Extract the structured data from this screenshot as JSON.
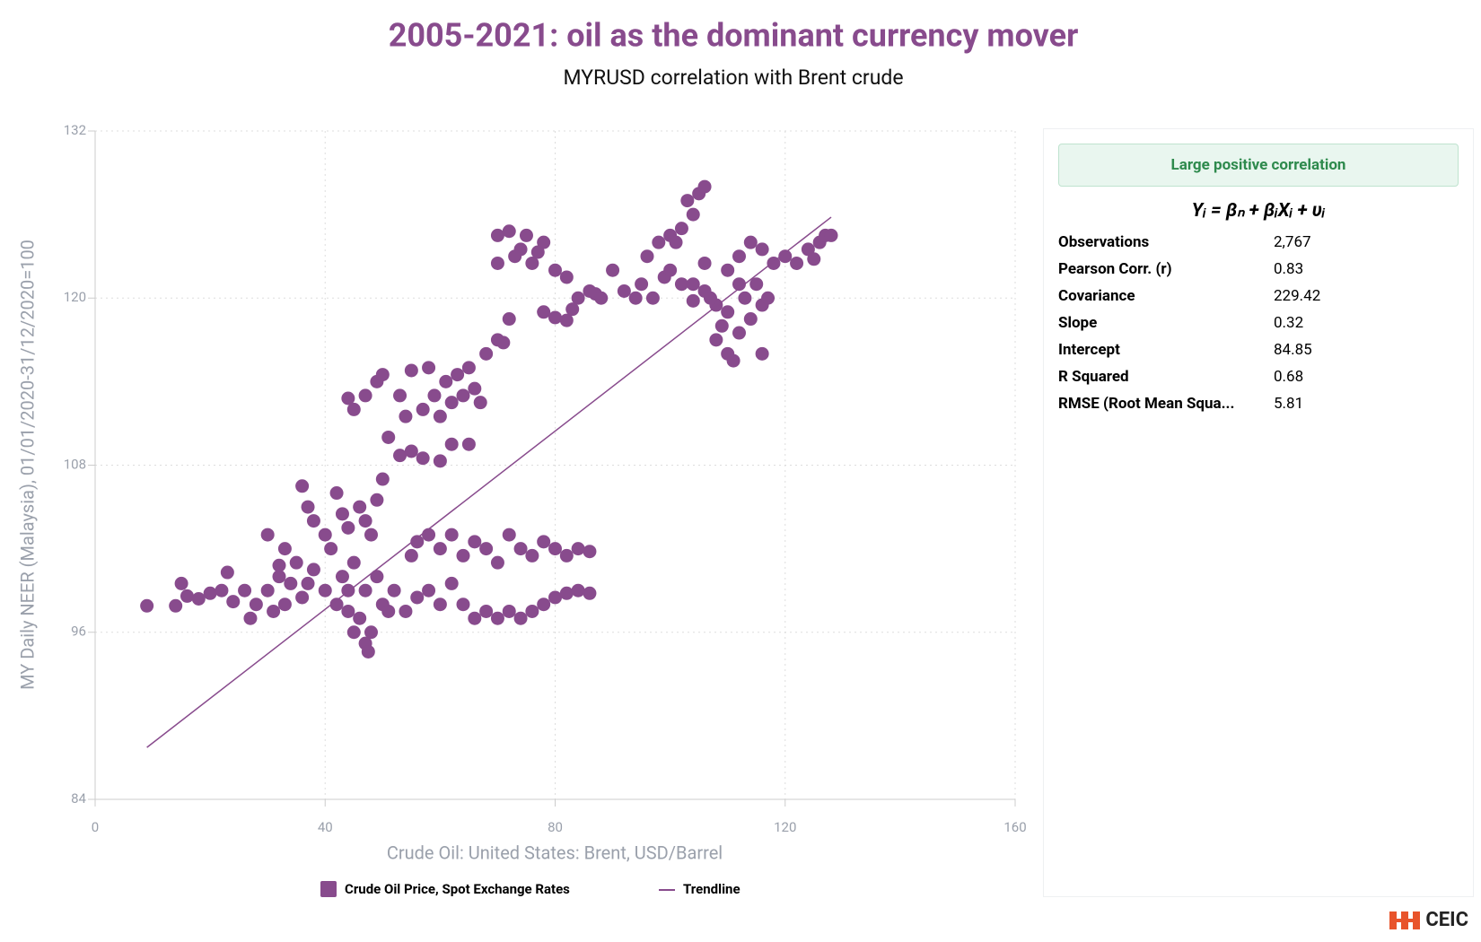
{
  "chart_data": {
    "type": "scatter",
    "title": "2005-2021: oil as the dominant currency mover",
    "subtitle": "MYRUSD correlation with Brent crude",
    "x_label": "Crude Oil: United States: Brent, USD/Barrel",
    "y_label": "MY Daily NEER (Malaysia), 01/01/2020-31/12/2020=100",
    "xlim": [
      0,
      160
    ],
    "xticks": [
      0,
      40,
      80,
      120,
      160
    ],
    "ylim": [
      84,
      132
    ],
    "yticks": [
      84,
      96,
      108,
      120,
      132
    ],
    "grid": true,
    "series": [
      {
        "name": "Crude Oil Price, Spot Exchange Rates",
        "color": "#884b8d",
        "x": [
          9,
          14,
          15,
          16,
          18,
          20,
          22,
          23,
          24,
          26,
          27,
          28,
          30,
          31,
          32,
          33,
          34,
          35,
          36,
          37,
          38,
          40,
          42,
          43,
          44,
          45,
          46,
          47,
          48,
          49,
          50,
          51,
          52,
          54,
          56,
          58,
          60,
          62,
          64,
          66,
          68,
          70,
          72,
          74,
          76,
          78,
          80,
          82,
          84,
          86,
          55,
          56,
          58,
          60,
          62,
          64,
          66,
          68,
          70,
          72,
          74,
          76,
          78,
          80,
          82,
          84,
          86,
          36,
          37,
          38,
          40,
          41,
          42,
          43,
          44,
          46,
          47,
          48,
          49,
          50,
          47,
          47.5,
          45,
          44,
          30,
          33,
          32,
          44,
          45,
          47,
          49,
          50,
          51,
          53,
          54,
          55,
          57,
          58,
          59,
          60,
          61,
          62,
          63,
          64,
          65,
          66,
          67,
          53,
          55,
          57,
          60,
          62,
          65,
          68,
          70,
          72,
          71,
          70,
          72,
          74,
          75,
          76,
          78,
          73,
          77,
          70,
          80,
          82,
          84,
          86,
          87,
          78,
          80,
          82,
          83,
          88,
          90,
          92,
          94,
          95,
          97,
          96,
          98,
          100,
          102,
          104,
          105,
          106,
          103,
          101,
          99,
          100,
          102,
          104,
          106,
          108,
          110,
          108,
          110,
          111,
          112,
          114,
          116,
          116,
          115,
          112,
          110,
          112,
          114,
          116,
          118,
          120,
          122,
          124,
          125,
          126,
          127,
          128,
          117,
          109,
          107,
          104,
          106,
          113
        ],
        "y": [
          97.9,
          97.9,
          99.5,
          98.6,
          98.4,
          98.8,
          99,
          100.3,
          98.2,
          99,
          97,
          98,
          99,
          97.5,
          100,
          98,
          99.5,
          101,
          98.5,
          99.5,
          100.5,
          99,
          98,
          100,
          99,
          101,
          97,
          99,
          96,
          100,
          98,
          97.5,
          99,
          97.5,
          98.5,
          99,
          98,
          99.5,
          98,
          97,
          97.5,
          97,
          97.5,
          97,
          97.5,
          98,
          98.5,
          98.8,
          99,
          98.8,
          101.5,
          102.5,
          103,
          102,
          103,
          101.5,
          102.5,
          102,
          101,
          103,
          102,
          101.5,
          102.5,
          102,
          101.5,
          102,
          101.8,
          106.5,
          105,
          104,
          103,
          102,
          106,
          104.5,
          103.5,
          105,
          104,
          103,
          105.5,
          107,
          95.2,
          94.6,
          96,
          97.5,
          103,
          102,
          100.8,
          112.8,
          112,
          113,
          114,
          114.5,
          110,
          113,
          111.5,
          114.8,
          112,
          115,
          113,
          111.5,
          114,
          112.5,
          114.5,
          113,
          115,
          113.5,
          112.5,
          108.7,
          109,
          108.5,
          108.3,
          109.5,
          109.5,
          116,
          117,
          118.5,
          116.8,
          124.5,
          124.8,
          123.5,
          124.5,
          122.5,
          124,
          123,
          123.3,
          122.5,
          122,
          121.5,
          120,
          120.5,
          120.3,
          119,
          118.6,
          118.4,
          119.2,
          120,
          122,
          120.5,
          120,
          121,
          120,
          123,
          124,
          124.5,
          125,
          126,
          127.5,
          128,
          127,
          124,
          121.5,
          122,
          121,
          121,
          120.5,
          119.5,
          119,
          117,
          116,
          115.5,
          117.5,
          118.5,
          116,
          119.5,
          121,
          121,
          122,
          123,
          124,
          123.5,
          122.5,
          123,
          122.5,
          123.5,
          122.8,
          124,
          124.5,
          124.5,
          120,
          118,
          120,
          119.8,
          122.5,
          120
        ]
      },
      {
        "name": "Trendline",
        "color": "#884b8d",
        "x": [
          9,
          128
        ],
        "y": [
          87.73,
          125.81
        ]
      }
    ]
  },
  "panel": {
    "badge": "Large positive correlation",
    "equation": "Yᵢ = βₙ + βᵢXᵢ + υᵢ",
    "stats": [
      [
        "Observations",
        "2,767"
      ],
      [
        "Pearson Corr. (r)",
        "0.83"
      ],
      [
        "Covariance",
        "229.42"
      ],
      [
        "Slope",
        "0.32"
      ],
      [
        "Intercept",
        "84.85"
      ],
      [
        "R Squared",
        "0.68"
      ],
      [
        "RMSE (Root Mean Squa...",
        "5.81"
      ]
    ]
  },
  "logo": "CEIC"
}
